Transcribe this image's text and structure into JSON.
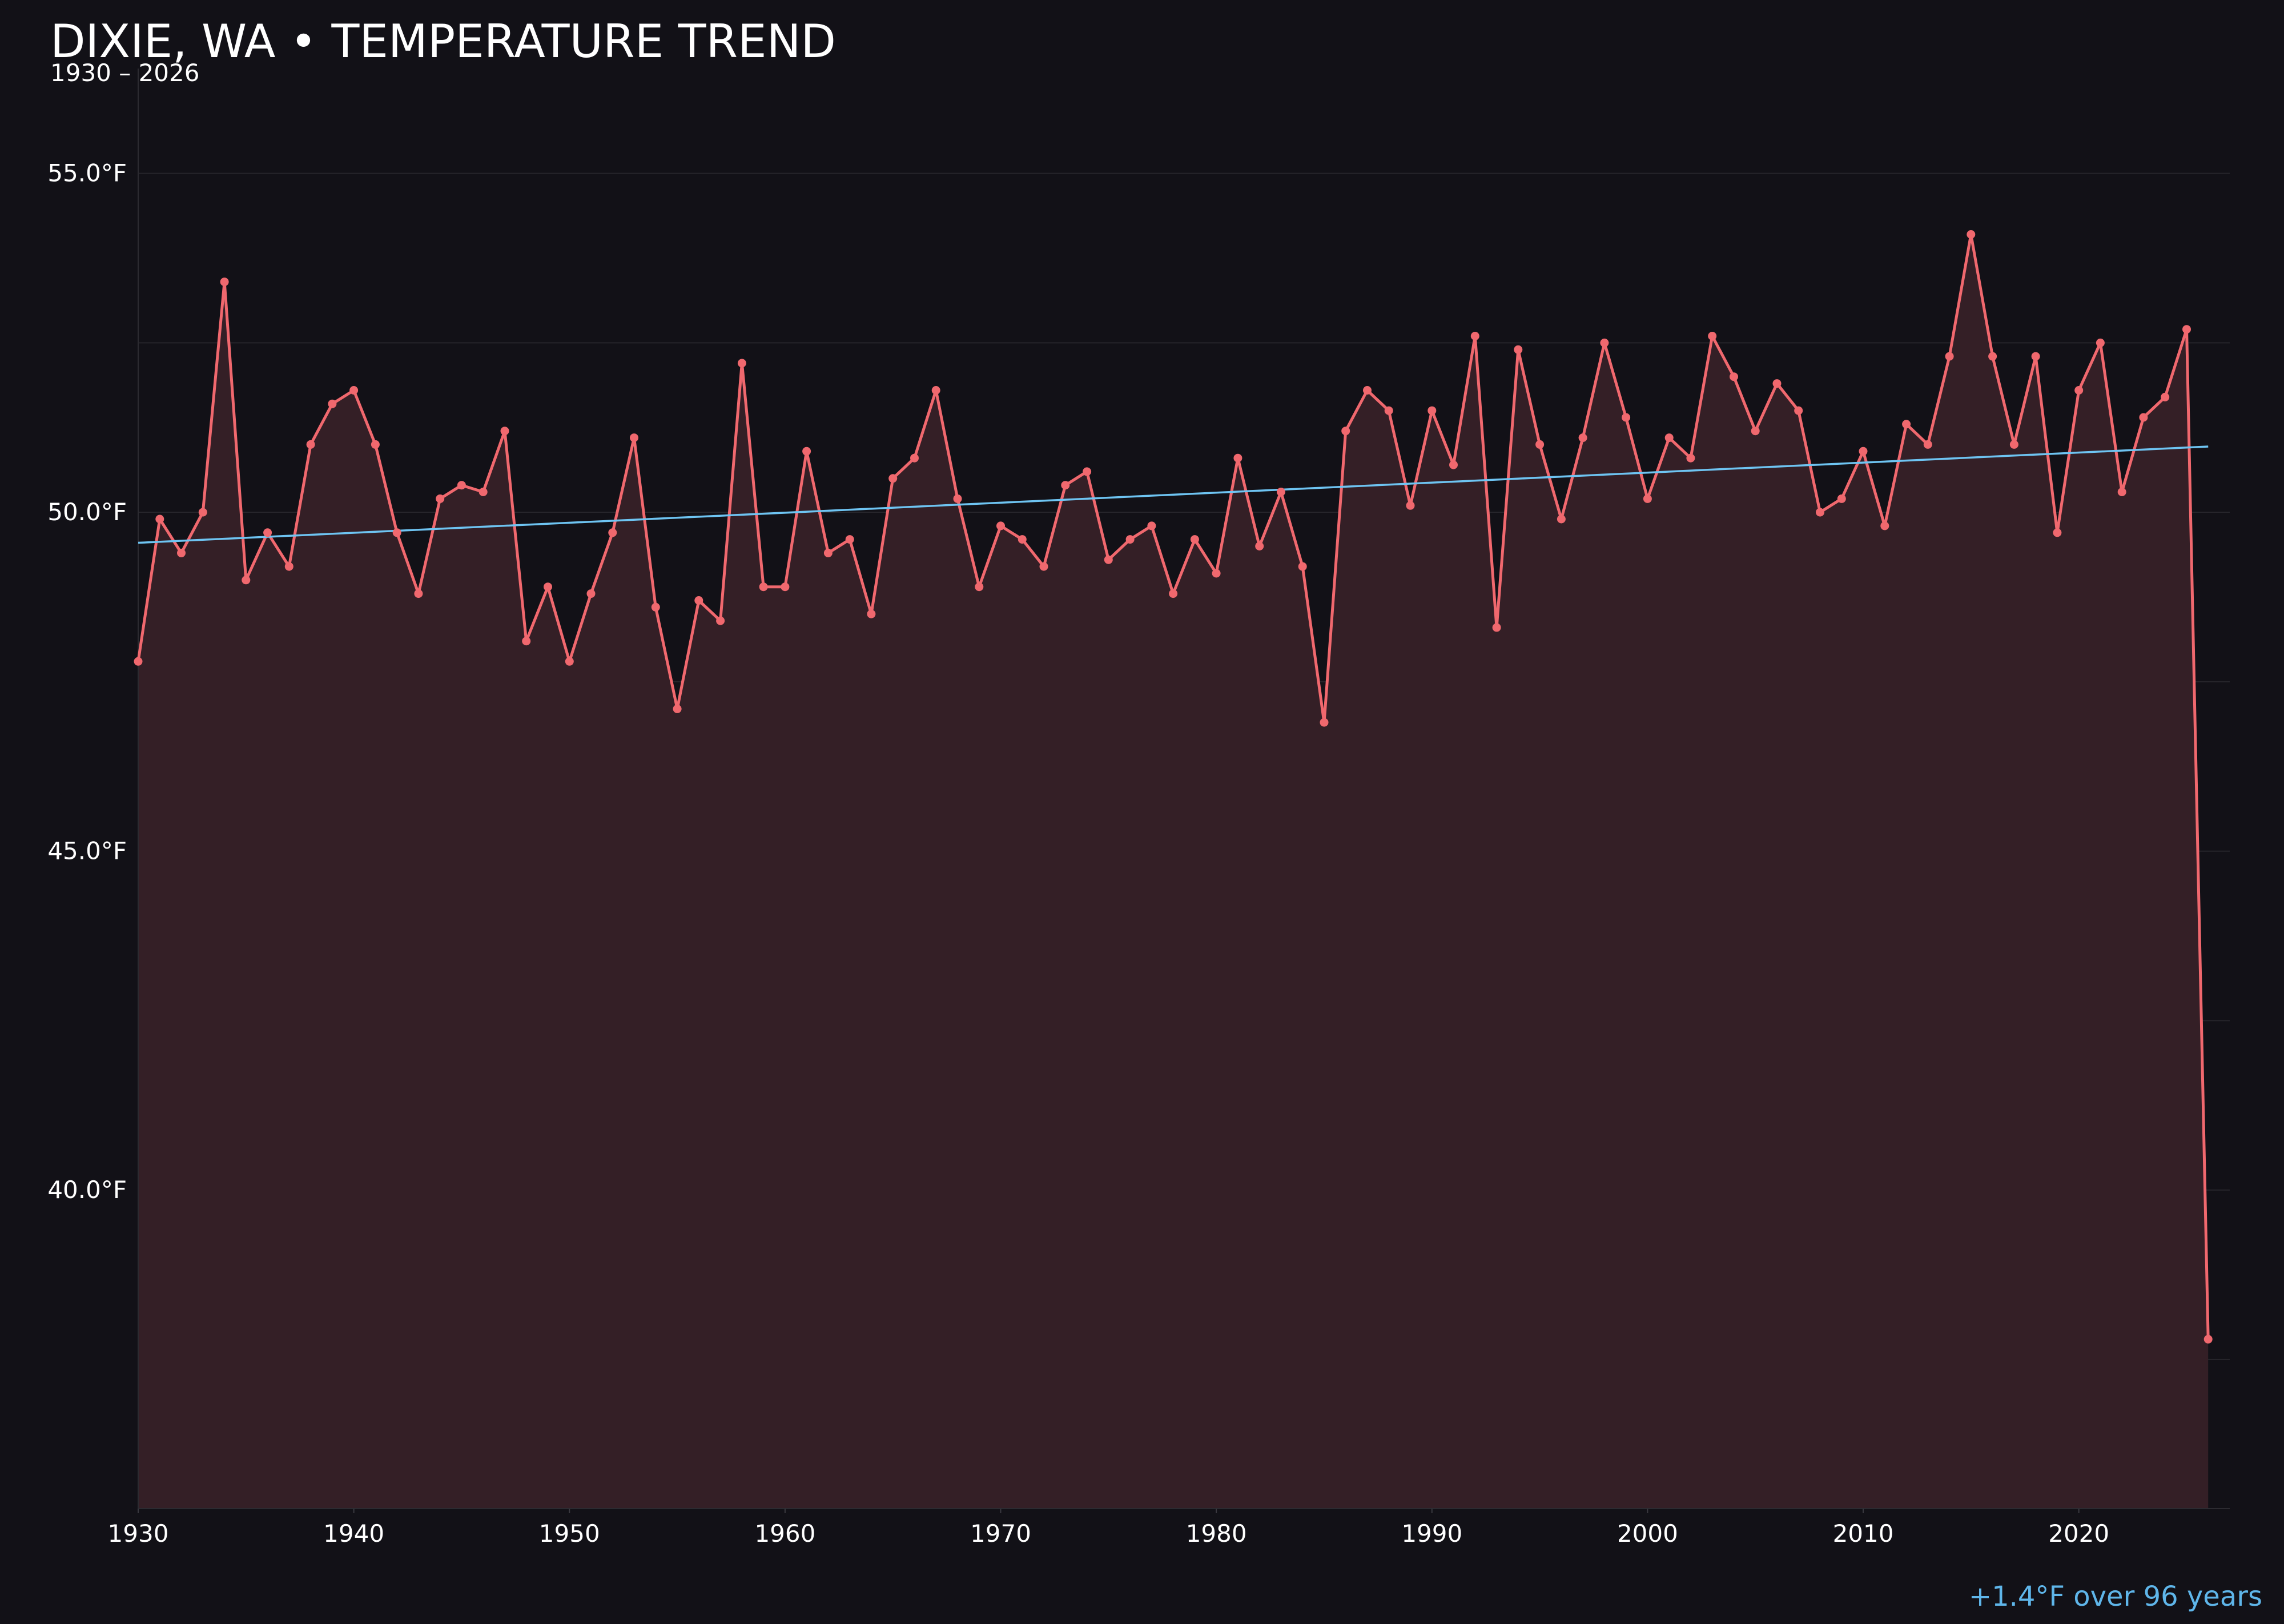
{
  "chart_data": {
    "type": "line",
    "title": "DIXIE, WA • TEMPERATURE TREND",
    "subtitle": "1930 – 2026",
    "xlabel": "",
    "ylabel": "",
    "xlim": [
      1930,
      2027
    ],
    "ylim": [
      35.3,
      56.8
    ],
    "x_ticks": [
      1930,
      1940,
      1950,
      1960,
      1970,
      1980,
      1990,
      2000,
      2010,
      2020
    ],
    "y_ticks": [
      40.0,
      45.0,
      50.0,
      55.0
    ],
    "y_tick_labels": [
      "40.0°F",
      "45.0°F",
      "50.0°F",
      "55.0°F"
    ],
    "x_tick_labels": [
      "1930",
      "1940",
      "1950",
      "1960",
      "1970",
      "1980",
      "1990",
      "2000",
      "2010",
      "2020"
    ],
    "grid": true,
    "colors": {
      "background": "#121117",
      "series": "#f0686e",
      "fill": "#341f26",
      "trend": "#6ec4f2",
      "grid": "#26252b",
      "text": "#ffffff",
      "footnote": "#5fb6ea"
    },
    "x": [
      1930,
      1931,
      1932,
      1933,
      1934,
      1935,
      1936,
      1937,
      1938,
      1939,
      1940,
      1941,
      1942,
      1943,
      1944,
      1945,
      1946,
      1947,
      1948,
      1949,
      1950,
      1951,
      1952,
      1953,
      1954,
      1955,
      1956,
      1957,
      1958,
      1959,
      1960,
      1961,
      1962,
      1963,
      1964,
      1965,
      1966,
      1967,
      1968,
      1969,
      1970,
      1971,
      1972,
      1973,
      1974,
      1975,
      1976,
      1977,
      1978,
      1979,
      1980,
      1981,
      1982,
      1983,
      1984,
      1985,
      1986,
      1987,
      1988,
      1989,
      1990,
      1991,
      1992,
      1993,
      1994,
      1995,
      1996,
      1997,
      1998,
      1999,
      2000,
      2001,
      2002,
      2003,
      2004,
      2005,
      2006,
      2007,
      2008,
      2009,
      2010,
      2011,
      2012,
      2013,
      2014,
      2015,
      2016,
      2017,
      2018,
      2019,
      2020,
      2021,
      2022,
      2023,
      2024,
      2025,
      2026
    ],
    "series": [
      {
        "values": [
          47.8,
          49.9,
          49.4,
          50.0,
          53.4,
          49.0,
          49.7,
          49.2,
          51.0,
          51.6,
          51.8,
          51.0,
          49.7,
          48.8,
          50.2,
          50.4,
          50.3,
          51.2,
          48.1,
          48.9,
          47.8,
          48.8,
          49.7,
          51.1,
          48.6,
          47.1,
          48.7,
          48.4,
          52.2,
          48.9,
          48.9,
          50.9,
          49.4,
          49.6,
          48.5,
          50.5,
          50.8,
          51.8,
          50.2,
          48.9,
          49.8,
          49.6,
          49.2,
          50.4,
          50.6,
          49.3,
          49.6,
          49.8,
          48.8,
          49.6,
          49.1,
          50.8,
          49.5,
          50.3,
          49.2,
          46.9,
          51.2,
          51.8,
          51.5,
          50.1,
          51.5,
          50.7,
          52.6,
          48.3,
          52.4,
          51.0,
          49.9,
          51.1,
          52.5,
          51.4,
          50.2,
          51.1,
          50.8,
          52.6,
          52.0,
          51.2,
          51.9,
          51.5,
          50.0,
          50.2,
          50.9,
          49.8,
          51.3,
          51.0,
          52.3,
          54.1,
          52.3,
          51.0,
          52.3,
          49.7,
          51.8,
          52.5,
          50.3,
          51.4,
          51.7,
          52.7,
          37.8
        ]
      }
    ],
    "trendline": {
      "x": [
        1930,
        2026
      ],
      "y": [
        49.55,
        50.97
      ]
    },
    "annotation": "+1.4°F over 96 years"
  }
}
